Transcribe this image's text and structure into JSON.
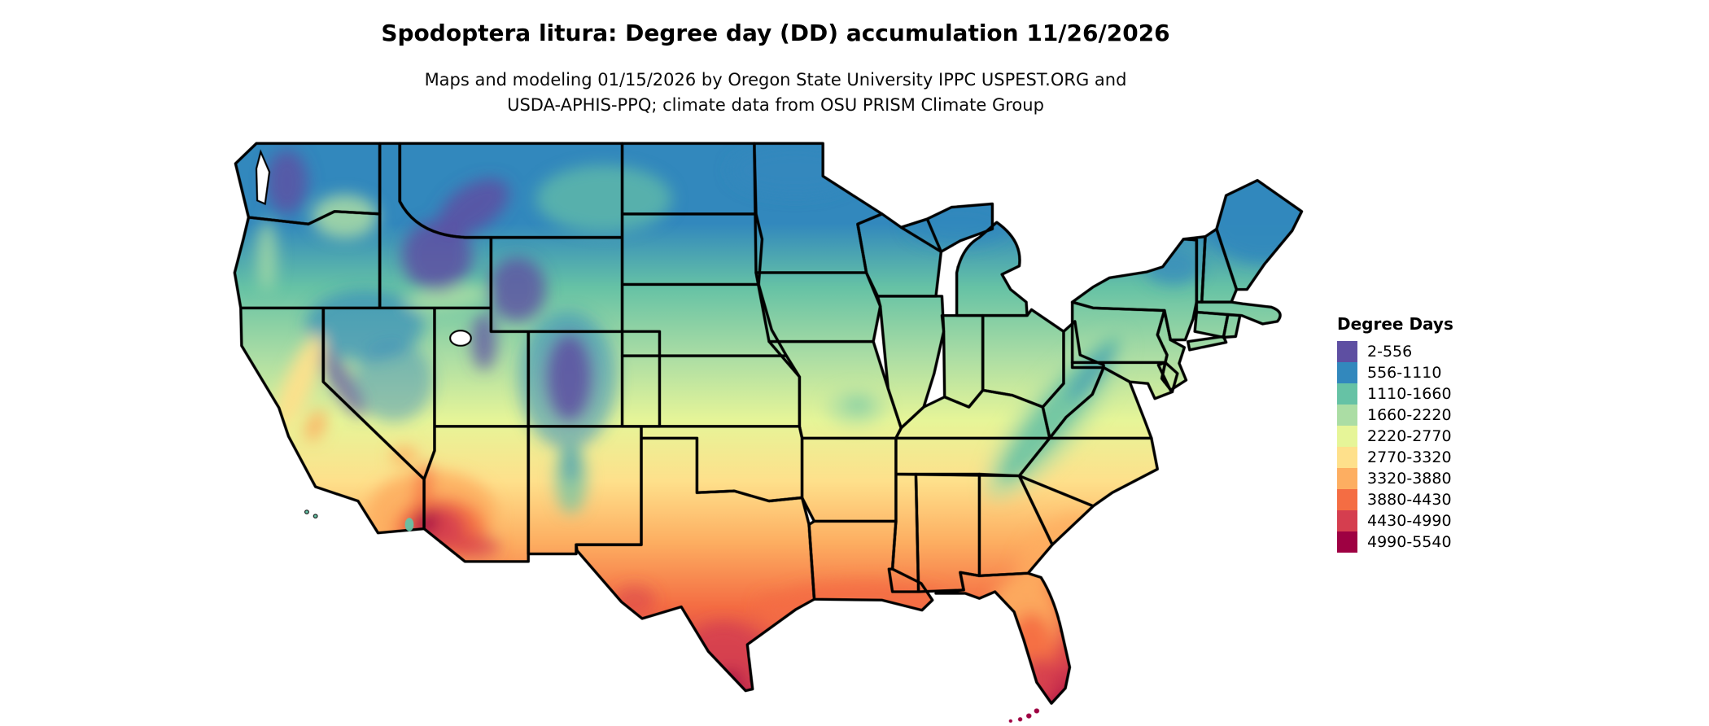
{
  "title": "Spodoptera litura: Degree day (DD) accumulation 11/26/2026",
  "subtitle": {
    "line1": "Maps and modeling 01/15/2026 by Oregon State University IPPC USPEST.ORG and",
    "line2": "USDA-APHIS-PPQ; climate data from OSU PRISM Climate Group"
  },
  "legend": {
    "title": "Degree Days",
    "items": [
      {
        "label": "2-556",
        "color": "#5e4fa2"
      },
      {
        "label": "556-1110",
        "color": "#3288bd"
      },
      {
        "label": "1110-1660",
        "color": "#66c2a5"
      },
      {
        "label": "1660-2220",
        "color": "#abdda4"
      },
      {
        "label": "2220-2770",
        "color": "#e6f598"
      },
      {
        "label": "2770-3320",
        "color": "#fee08b"
      },
      {
        "label": "3320-3880",
        "color": "#fdae61"
      },
      {
        "label": "3880-4430",
        "color": "#f46d43"
      },
      {
        "label": "4430-4990",
        "color": "#d53e4f"
      },
      {
        "label": "4990-5540",
        "color": "#9e0142"
      }
    ]
  },
  "map": {
    "region": "Contiguous United States",
    "kind": "degree-day accumulation raster with state boundaries",
    "background_color": "#ffffff",
    "boundary_color": "#000000"
  }
}
